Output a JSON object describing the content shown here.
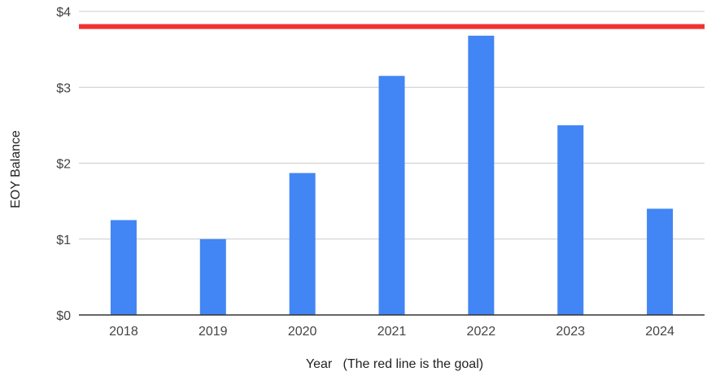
{
  "chart_data": {
    "type": "bar",
    "title": "",
    "xlabel": "Year   (The red line is the goal)",
    "ylabel": "EOY Balance",
    "categories": [
      "2018",
      "2019",
      "2020",
      "2021",
      "2022",
      "2023",
      "2024"
    ],
    "values": [
      1.25,
      1.0,
      1.87,
      3.15,
      3.68,
      2.5,
      1.4
    ],
    "ylim": [
      0,
      4
    ],
    "yticks": [
      0,
      1,
      2,
      3,
      4
    ],
    "ytick_labels": [
      "$0",
      "$1",
      "$2",
      "$3",
      "$4"
    ],
    "goal": 3.8,
    "grid": true,
    "legend": "none",
    "colors": {
      "bar": "#4285f4",
      "goal_line": "#f03232",
      "grid": "#cccccc",
      "baseline": "#333333"
    }
  }
}
